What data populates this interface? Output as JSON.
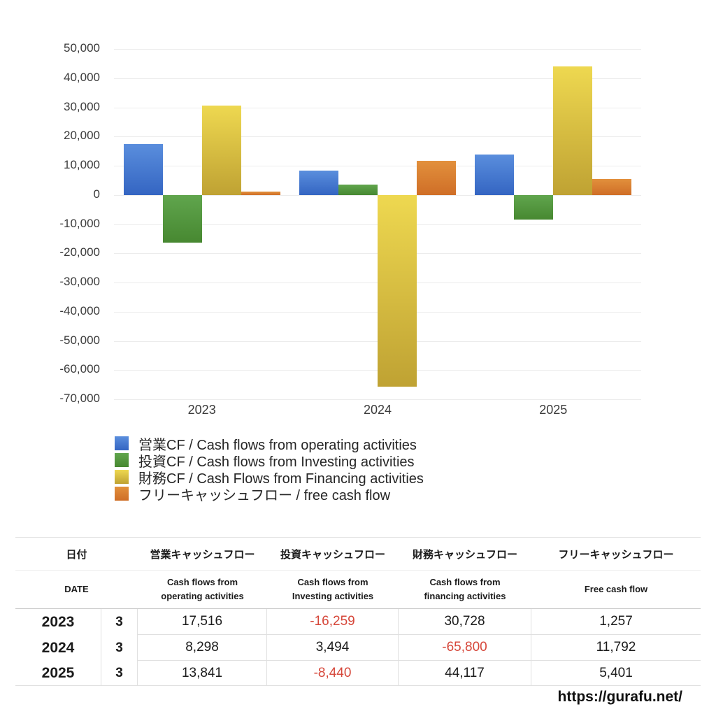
{
  "chart_data": {
    "type": "bar",
    "title": "",
    "xlabel": "",
    "ylabel": "",
    "categories": [
      "2023",
      "2024",
      "2025"
    ],
    "series": [
      {
        "name": "営業CF / Cash flows from operating activities",
        "values": [
          17516,
          8298,
          13841
        ],
        "color_top": "#5a8edd",
        "color_bottom": "#3465c2"
      },
      {
        "name": "投資CF / Cash flows from Investing activities",
        "values": [
          -16259,
          3494,
          -8440
        ],
        "color_top": "#60a54d",
        "color_bottom": "#478831"
      },
      {
        "name": "財務CF / Cash Flows from Financing activities",
        "values": [
          30728,
          -65800,
          44117
        ],
        "color_top": "#eed850",
        "color_bottom": "#bfa233"
      },
      {
        "name": "フリーキャッシュフロー / free cash flow",
        "values": [
          1257,
          11792,
          5401
        ],
        "color_top": "#e2903c",
        "color_bottom": "#cf6e27"
      }
    ],
    "ylim": [
      -70000,
      50000
    ],
    "ytick_step": 10000,
    "grid": true,
    "legend_position": "bottom-left"
  },
  "table": {
    "header_row1": [
      "日付",
      "営業キャッシュフロー",
      "投資キャッシュフロー",
      "財務キャッシュフロー",
      "フリーキャッシュフロー"
    ],
    "header_row2": [
      "DATE",
      "Cash flows from operating activities",
      "Cash flows from Investing activities",
      "Cash flows from financing activities",
      "Free cash flow"
    ],
    "rows": [
      {
        "year": "2023",
        "month": "3",
        "values": [
          "17,516",
          "-16,259",
          "30,728",
          "1,257"
        ]
      },
      {
        "year": "2024",
        "month": "3",
        "values": [
          "8,298",
          "3,494",
          "-65,800",
          "11,792"
        ]
      },
      {
        "year": "2025",
        "month": "3",
        "values": [
          "13,841",
          "-8,440",
          "44,117",
          "5,401"
        ]
      }
    ],
    "negative_color": "#d6473a"
  },
  "footer": {
    "url": "https://gurafu.net/"
  }
}
